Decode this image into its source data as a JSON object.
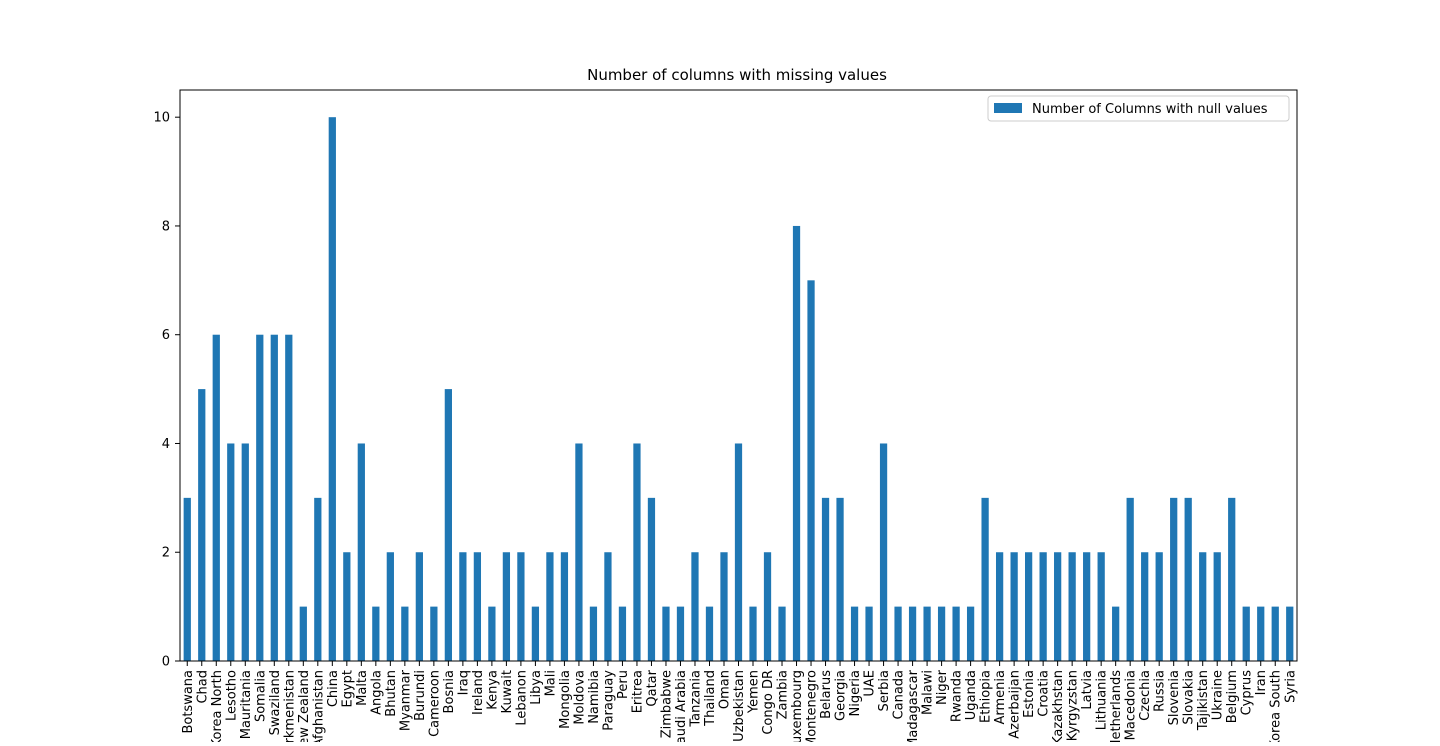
{
  "chart_data": {
    "type": "bar",
    "title": "Number of columns with missing values",
    "xlabel": "",
    "ylabel": "",
    "ylim": [
      0,
      10.5
    ],
    "yticks": [
      0,
      2,
      4,
      6,
      8,
      10
    ],
    "grid": false,
    "legend_position": "top-right",
    "colors": {
      "bar": "#1f77b4"
    },
    "categories": [
      "Botswana",
      "Chad",
      "Korea North",
      "Lesotho",
      "Mauritania",
      "Somalia",
      "Swaziland",
      "Turkmenistan",
      "New Zealand",
      "Afghanistan",
      "China",
      "Egypt",
      "Malta",
      "Angola",
      "Bhutan",
      "Myanmar",
      "Burundi",
      "Cameroon",
      "Bosnia",
      "Iraq",
      "Ireland",
      "Kenya",
      "Kuwait",
      "Lebanon",
      "Libya",
      "Mali",
      "Mongolia",
      "Moldova",
      "Namibia",
      "Paraguay",
      "Peru",
      "Eritrea",
      "Qatar",
      "Zimbabwe",
      "Saudi Arabia",
      "Tanzania",
      "Thailand",
      "Oman",
      "Uzbekistan",
      "Yemen",
      "Congo DR",
      "Zambia",
      "Luxembourg",
      "Montenegro",
      "Belarus",
      "Georgia",
      "Nigeria",
      "UAE",
      "Serbia",
      "Canada",
      "Madagascar",
      "Malawi",
      "Niger",
      "Rwanda",
      "Uganda",
      "Ethiopia",
      "Armenia",
      "Azerbaijan",
      "Estonia",
      "Croatia",
      "Kazakhstan",
      "Kyrgyzstan",
      "Latvia",
      "Lithuania",
      "Netherlands",
      "Macedonia",
      "Czechia",
      "Russia",
      "Slovenia",
      "Slovakia",
      "Tajikistan",
      "Ukraine",
      "Belgium",
      "Cyprus",
      "Iran",
      "Korea South",
      "Syria"
    ],
    "series": [
      {
        "name": "Number of Columns with null values",
        "values": [
          3,
          5,
          6,
          4,
          4,
          6,
          6,
          6,
          1,
          3,
          10,
          2,
          4,
          1,
          2,
          1,
          2,
          1,
          5,
          2,
          2,
          1,
          2,
          2,
          1,
          2,
          2,
          4,
          1,
          2,
          1,
          4,
          3,
          1,
          1,
          2,
          1,
          2,
          4,
          1,
          2,
          1,
          8,
          7,
          3,
          3,
          1,
          1,
          4,
          1,
          1,
          1,
          1,
          1,
          1,
          3,
          2,
          2,
          2,
          2,
          2,
          2,
          2,
          2,
          1,
          3,
          2,
          2,
          3,
          3,
          2,
          2,
          3,
          1,
          1,
          1,
          1
        ]
      }
    ]
  }
}
